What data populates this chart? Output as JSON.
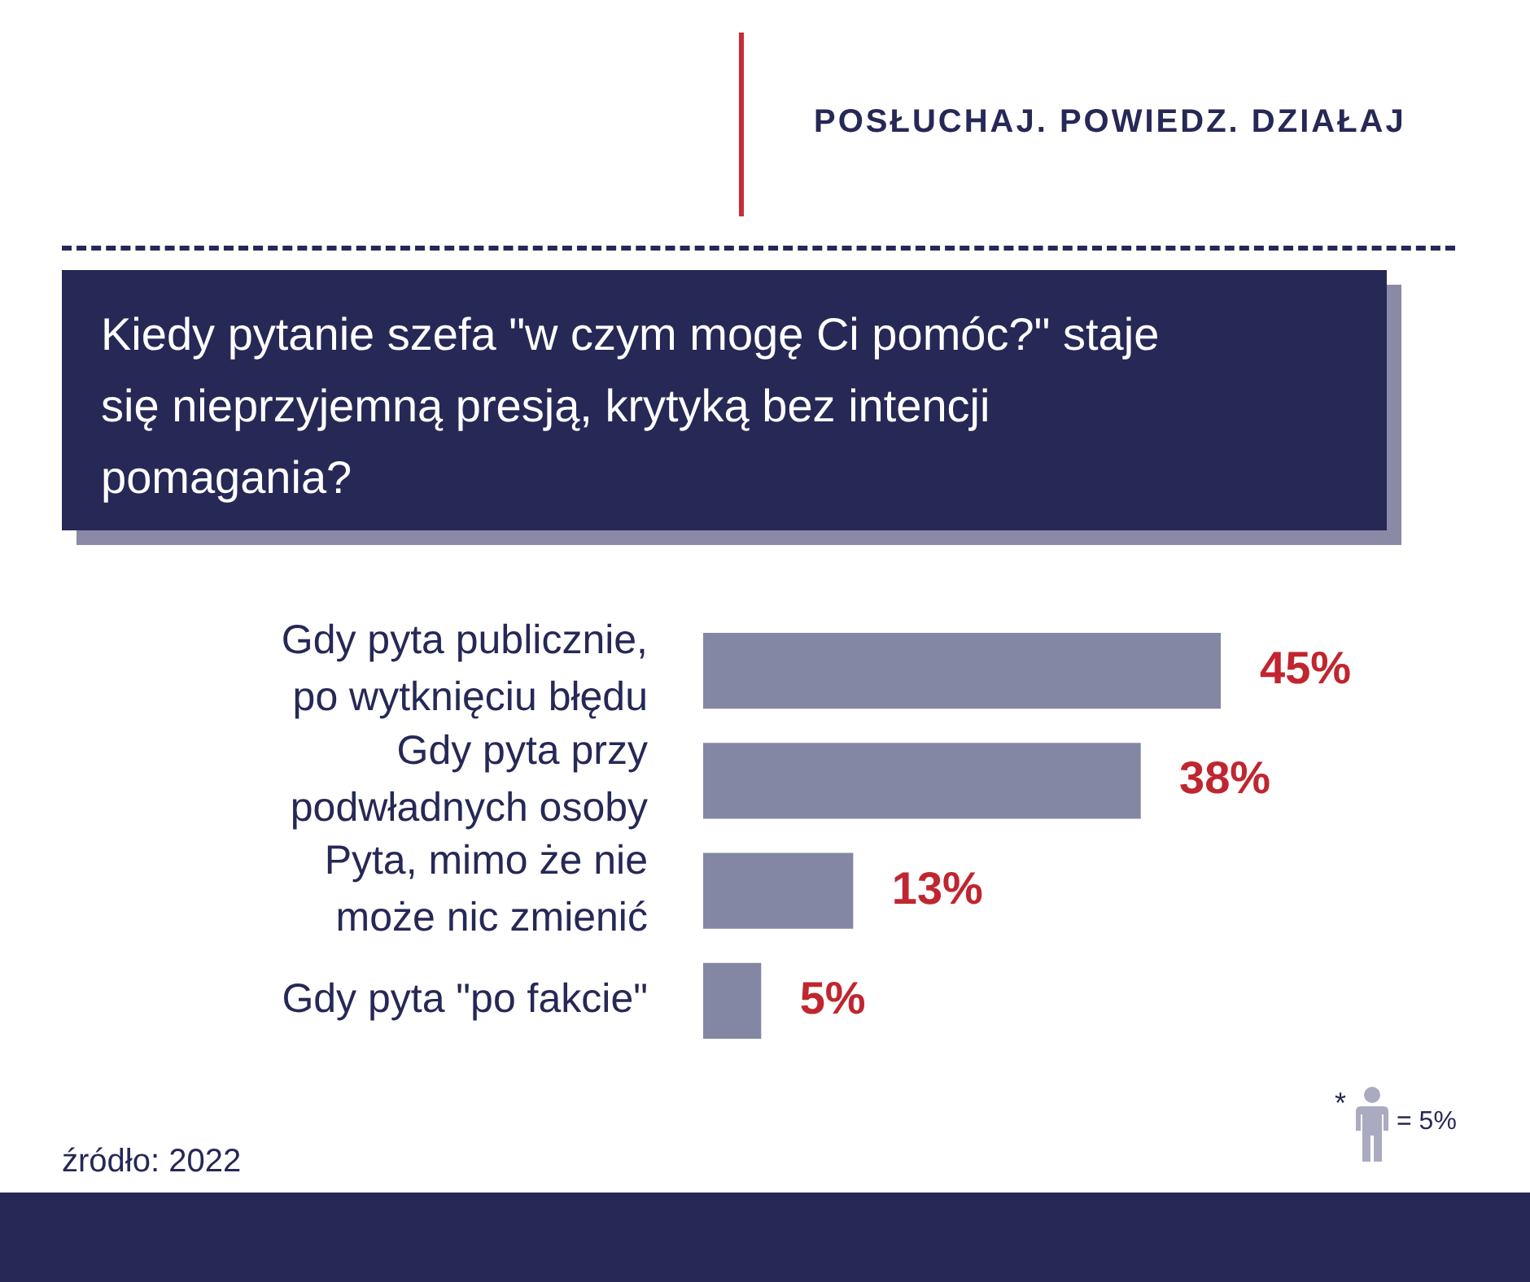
{
  "chart_data": {
    "type": "bar",
    "orientation": "horizontal",
    "title": "Kiedy pytanie szefa \"w czym mogę Ci pomóc?\" staje się nieprzyjemną presją, krytyką bez intencji pomagania?",
    "categories": [
      "Gdy pyta publicznie, po wytknięciu błędu",
      "Gdy pyta przy podwładnych osoby",
      "Pyta, mimo że nie może nic zmienić",
      "Gdy pyta \"po fakcie\""
    ],
    "values": [
      45,
      38,
      13,
      5
    ],
    "value_labels": [
      "45%",
      "38%",
      "13%",
      "5%"
    ],
    "color": "#8487a3",
    "tick_labels": "y",
    "annotations": [
      "POSŁUCHAJ. POWIEDZ. DZIAŁAJ",
      "źródło: 2022",
      "*",
      "= 5%"
    ]
  }
}
